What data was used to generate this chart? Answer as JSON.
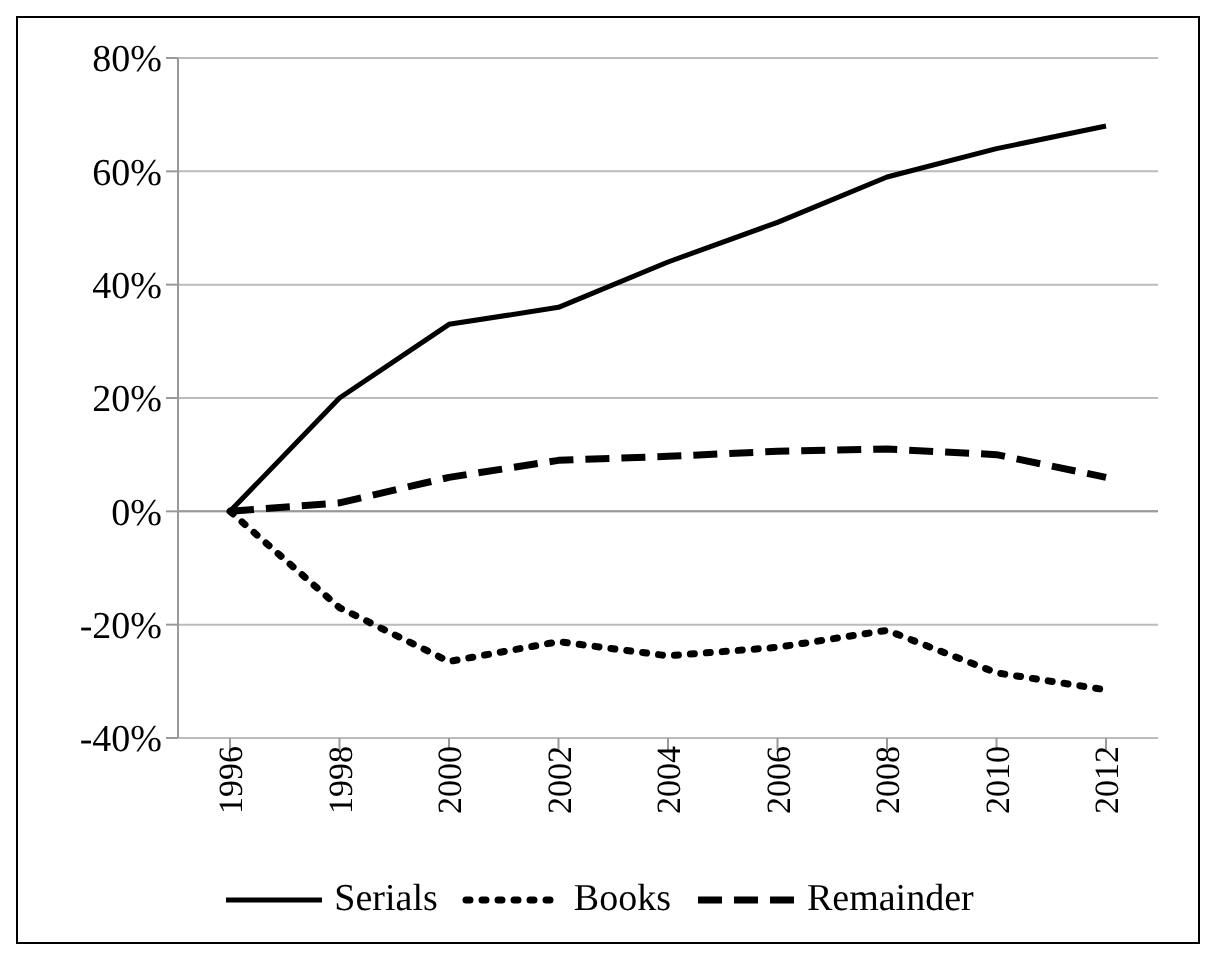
{
  "chart_data": {
    "type": "line",
    "categories": [
      "1996",
      "1998",
      "2000",
      "2002",
      "2004",
      "2006",
      "2008",
      "2010",
      "2012"
    ],
    "series": [
      {
        "name": "Serials",
        "color": "#000000",
        "line_style": "solid",
        "values": [
          0,
          20,
          33,
          36,
          44,
          51,
          59,
          64,
          68
        ]
      },
      {
        "name": "Books",
        "color": "#000000",
        "line_style": "dotted",
        "values": [
          0,
          -17,
          -26.5,
          -23,
          -25.5,
          -24,
          -21,
          -28.5,
          -31.5
        ]
      },
      {
        "name": "Remainder",
        "color": "#000000",
        "line_style": "dashed",
        "values": [
          0,
          1.5,
          6,
          9,
          9.7,
          10.6,
          11,
          10,
          6
        ]
      }
    ],
    "ylim": [
      -40,
      80
    ],
    "yticks": [
      {
        "value": -40,
        "label": "-40%"
      },
      {
        "value": -20,
        "label": "-20%"
      },
      {
        "value": 0,
        "label": "0%"
      },
      {
        "value": 20,
        "label": "20%"
      },
      {
        "value": 40,
        "label": "40%"
      },
      {
        "value": 60,
        "label": "60%"
      },
      {
        "value": 80,
        "label": "80%"
      }
    ],
    "grid": "y",
    "legend": "bottom",
    "marker": "none"
  }
}
